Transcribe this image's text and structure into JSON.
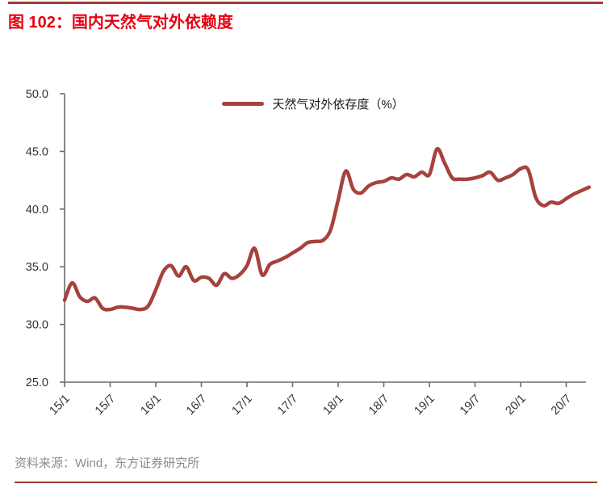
{
  "page": {
    "title_label": "图 102：国内天然气对外依赖度",
    "source_note": "资料来源：Wind，东方证券研究所"
  },
  "colors": {
    "title_red": "#e60012",
    "rule_red": "#a13b30",
    "line_red": "#a6423c",
    "axis_gray": "#6b6b6b",
    "tick_label": "#333333",
    "footer_gray": "#8c8c8c"
  },
  "chart_data": {
    "type": "line",
    "title": "",
    "legend": [
      "天然气对外依存度（%）"
    ],
    "legend_position": "top-center",
    "grid": false,
    "ylim": [
      25.0,
      50.0
    ],
    "yticks": [
      25.0,
      30.0,
      35.0,
      40.0,
      45.0,
      50.0
    ],
    "ytick_labels": [
      "25.0",
      "30.0",
      "35.0",
      "40.0",
      "45.0",
      "50.0"
    ],
    "xtick_labels": [
      "15/1",
      "15/7",
      "16/1",
      "16/7",
      "17/1",
      "17/7",
      "18/1",
      "18/7",
      "19/1",
      "19/7",
      "20/1",
      "20/7"
    ],
    "x_start_month": "2015-01",
    "x_end_month": "2020-10",
    "frequency": "monthly",
    "series": [
      {
        "name": "天然气对外依存度（%）",
        "values": [
          32.1,
          33.6,
          32.4,
          32.0,
          32.3,
          31.4,
          31.3,
          31.5,
          31.5,
          31.4,
          31.3,
          31.6,
          33.0,
          34.6,
          35.1,
          34.2,
          35.0,
          33.8,
          34.1,
          34.0,
          33.4,
          34.4,
          34.0,
          34.3,
          35.1,
          36.6,
          34.3,
          35.2,
          35.5,
          35.8,
          36.2,
          36.6,
          37.1,
          37.2,
          37.3,
          38.2,
          40.8,
          43.3,
          41.7,
          41.4,
          42.0,
          42.3,
          42.4,
          42.7,
          42.6,
          43.0,
          42.8,
          43.2,
          43.0,
          45.2,
          44.0,
          42.7,
          42.6,
          42.6,
          42.7,
          42.9,
          43.2,
          42.5,
          42.7,
          43.0,
          43.5,
          43.4,
          41.0,
          40.3,
          40.6,
          40.5,
          40.9,
          41.3,
          41.6,
          41.9
        ]
      }
    ]
  }
}
